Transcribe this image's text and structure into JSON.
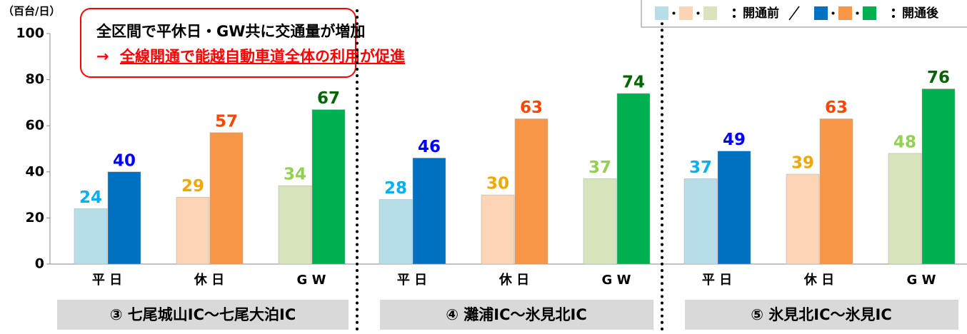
{
  "chart_data": {
    "type": "bar",
    "y_unit_label": "（百台/日）",
    "annotation": {
      "line1": "全区間で平休日・GW共に交通量が増加",
      "arrow": "→",
      "line2": "全線開通で能越自動車道全体の利用が促進"
    },
    "categories": [
      "平 日",
      "休 日",
      "G W"
    ],
    "series": [
      {
        "name": "開通前",
        "colors": [
          "#b7dde8",
          "#fcd5b5",
          "#d7e4bc"
        ],
        "label_colors": [
          "#00b0f0",
          "#f0a800",
          "#92d050"
        ]
      },
      {
        "name": "開通後",
        "colors": [
          "#0070c0",
          "#f79646",
          "#00b050"
        ],
        "label_colors": [
          "#0000ff",
          "#ff4500",
          "#006400"
        ]
      }
    ],
    "sections": [
      {
        "title": "③ 七尾城山IC～七尾大泊IC",
        "values": [
          [
            24,
            29,
            34
          ],
          [
            40,
            57,
            67
          ]
        ]
      },
      {
        "title": "④ 灘浦IC～氷見北IC",
        "values": [
          [
            28,
            30,
            37
          ],
          [
            46,
            63,
            74
          ]
        ]
      },
      {
        "title": "⑤ 氷見北IC～氷見IC",
        "values": [
          [
            37,
            39,
            48
          ],
          [
            49,
            63,
            76
          ]
        ]
      }
    ],
    "ylim": [
      0,
      100
    ],
    "yticks": [
      0,
      20,
      40,
      60,
      80,
      100
    ]
  }
}
